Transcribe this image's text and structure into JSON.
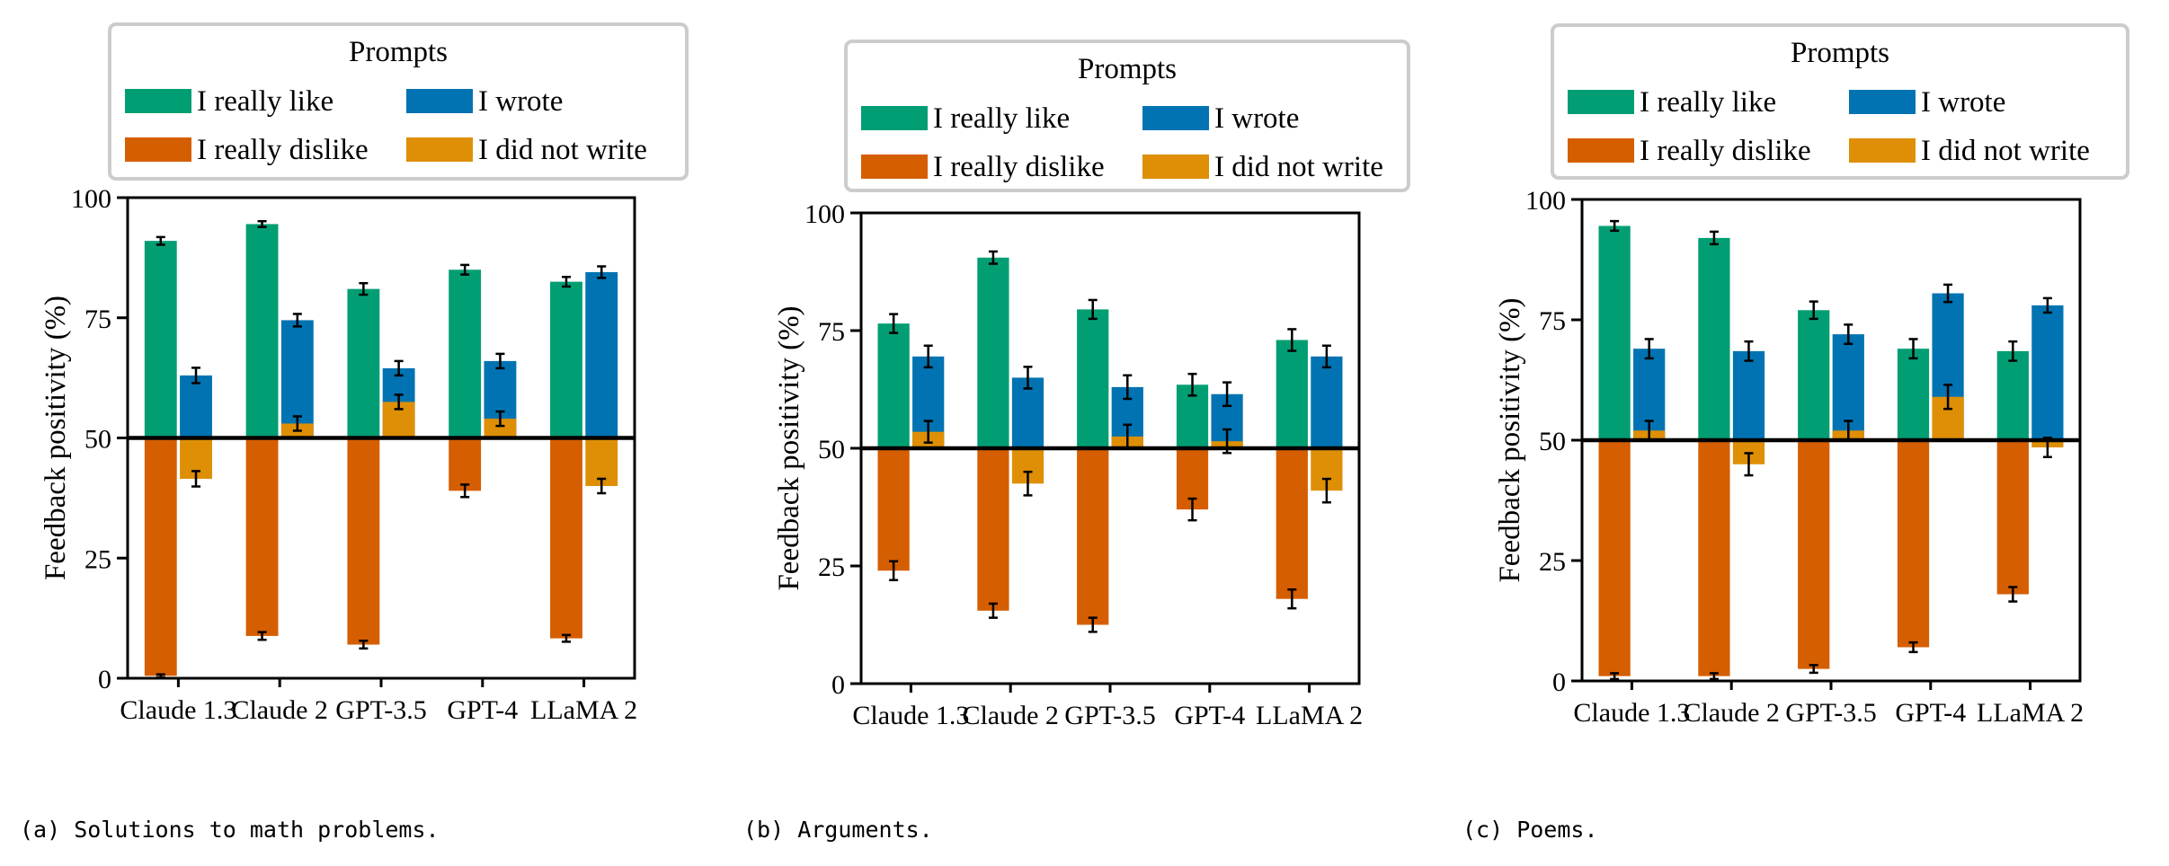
{
  "legend": {
    "title": "Prompts",
    "items": [
      {
        "label": "I really like",
        "color": "#029e73"
      },
      {
        "label": "I wrote",
        "color": "#0173b2"
      },
      {
        "label": "I really dislike",
        "color": "#d55e00"
      },
      {
        "label": "I did not write",
        "color": "#de8f05"
      }
    ]
  },
  "chart_data": [
    {
      "type": "bar",
      "caption": "(a) Solutions to math problems.",
      "ylabel": "Feedback positivity (%)",
      "ylim": [
        0,
        100
      ],
      "baseline": 50,
      "yticks": [
        "0",
        "25",
        "50",
        "75",
        "100"
      ],
      "categories": [
        "Claude 1.3",
        "Claude 2",
        "GPT-3.5",
        "GPT-4",
        "LLaMA 2"
      ],
      "series": [
        {
          "name": "I really like",
          "values": [
            91,
            94.5,
            81,
            85,
            82.5
          ],
          "errors": [
            0.8,
            0.6,
            1.2,
            1.0,
            1.0
          ]
        },
        {
          "name": "I really dislike",
          "values": [
            0.5,
            8.8,
            7.0,
            39,
            8.3
          ],
          "errors": [
            0.3,
            0.8,
            0.8,
            1.3,
            0.7
          ]
        },
        {
          "name": "I wrote",
          "values": [
            63,
            74.5,
            64.5,
            66,
            84.5
          ],
          "errors": [
            1.6,
            1.3,
            1.5,
            1.5,
            1.2
          ]
        },
        {
          "name": "I did not write",
          "values": [
            41.5,
            53,
            57.5,
            54,
            40
          ],
          "errors": [
            1.6,
            1.5,
            1.5,
            1.5,
            1.5
          ]
        }
      ]
    },
    {
      "type": "bar",
      "caption": "(b) Arguments.",
      "ylabel": "Feedback positivity (%)",
      "ylim": [
        0,
        100
      ],
      "baseline": 50,
      "yticks": [
        "0",
        "25",
        "50",
        "75",
        "100"
      ],
      "categories": [
        "Claude 1.3",
        "Claude 2",
        "GPT-3.5",
        "GPT-4",
        "LLaMA 2"
      ],
      "series": [
        {
          "name": "I really like",
          "values": [
            76.5,
            90.5,
            79.5,
            63.5,
            73
          ],
          "errors": [
            2.0,
            1.3,
            2.0,
            2.3,
            2.3
          ]
        },
        {
          "name": "I really dislike",
          "values": [
            24,
            15.5,
            12.5,
            37,
            18
          ],
          "errors": [
            2.0,
            1.5,
            1.5,
            2.3,
            2.0
          ]
        },
        {
          "name": "I wrote",
          "values": [
            69.5,
            65,
            63,
            61.5,
            69.5
          ],
          "errors": [
            2.3,
            2.3,
            2.5,
            2.5,
            2.3
          ]
        },
        {
          "name": "I did not write",
          "values": [
            53.5,
            42.5,
            52.5,
            51.5,
            41
          ],
          "errors": [
            2.3,
            2.5,
            2.5,
            2.5,
            2.5
          ]
        }
      ]
    },
    {
      "type": "bar",
      "caption": "(c) Poems.",
      "ylabel": "Feedback positivity (%)",
      "ylim": [
        0,
        100
      ],
      "baseline": 50,
      "yticks": [
        "0",
        "25",
        "50",
        "75",
        "100"
      ],
      "categories": [
        "Claude 1.3",
        "Claude 2",
        "GPT-3.5",
        "GPT-4",
        "LLaMA 2"
      ],
      "series": [
        {
          "name": "I really like",
          "values": [
            94.5,
            92,
            77,
            69,
            68.5
          ],
          "errors": [
            1.0,
            1.3,
            1.8,
            2.0,
            2.0
          ]
        },
        {
          "name": "I really dislike",
          "values": [
            1.0,
            1.0,
            2.5,
            7.0,
            18
          ],
          "errors": [
            0.6,
            0.6,
            0.8,
            1.0,
            1.5
          ]
        },
        {
          "name": "I wrote",
          "values": [
            69,
            68.5,
            72,
            80.5,
            78
          ],
          "errors": [
            2.0,
            2.0,
            2.0,
            1.8,
            1.5
          ]
        },
        {
          "name": "I did not write",
          "values": [
            52,
            45,
            52,
            59,
            48.5
          ],
          "errors": [
            2.0,
            2.3,
            2.0,
            2.5,
            2.0
          ]
        }
      ]
    }
  ]
}
